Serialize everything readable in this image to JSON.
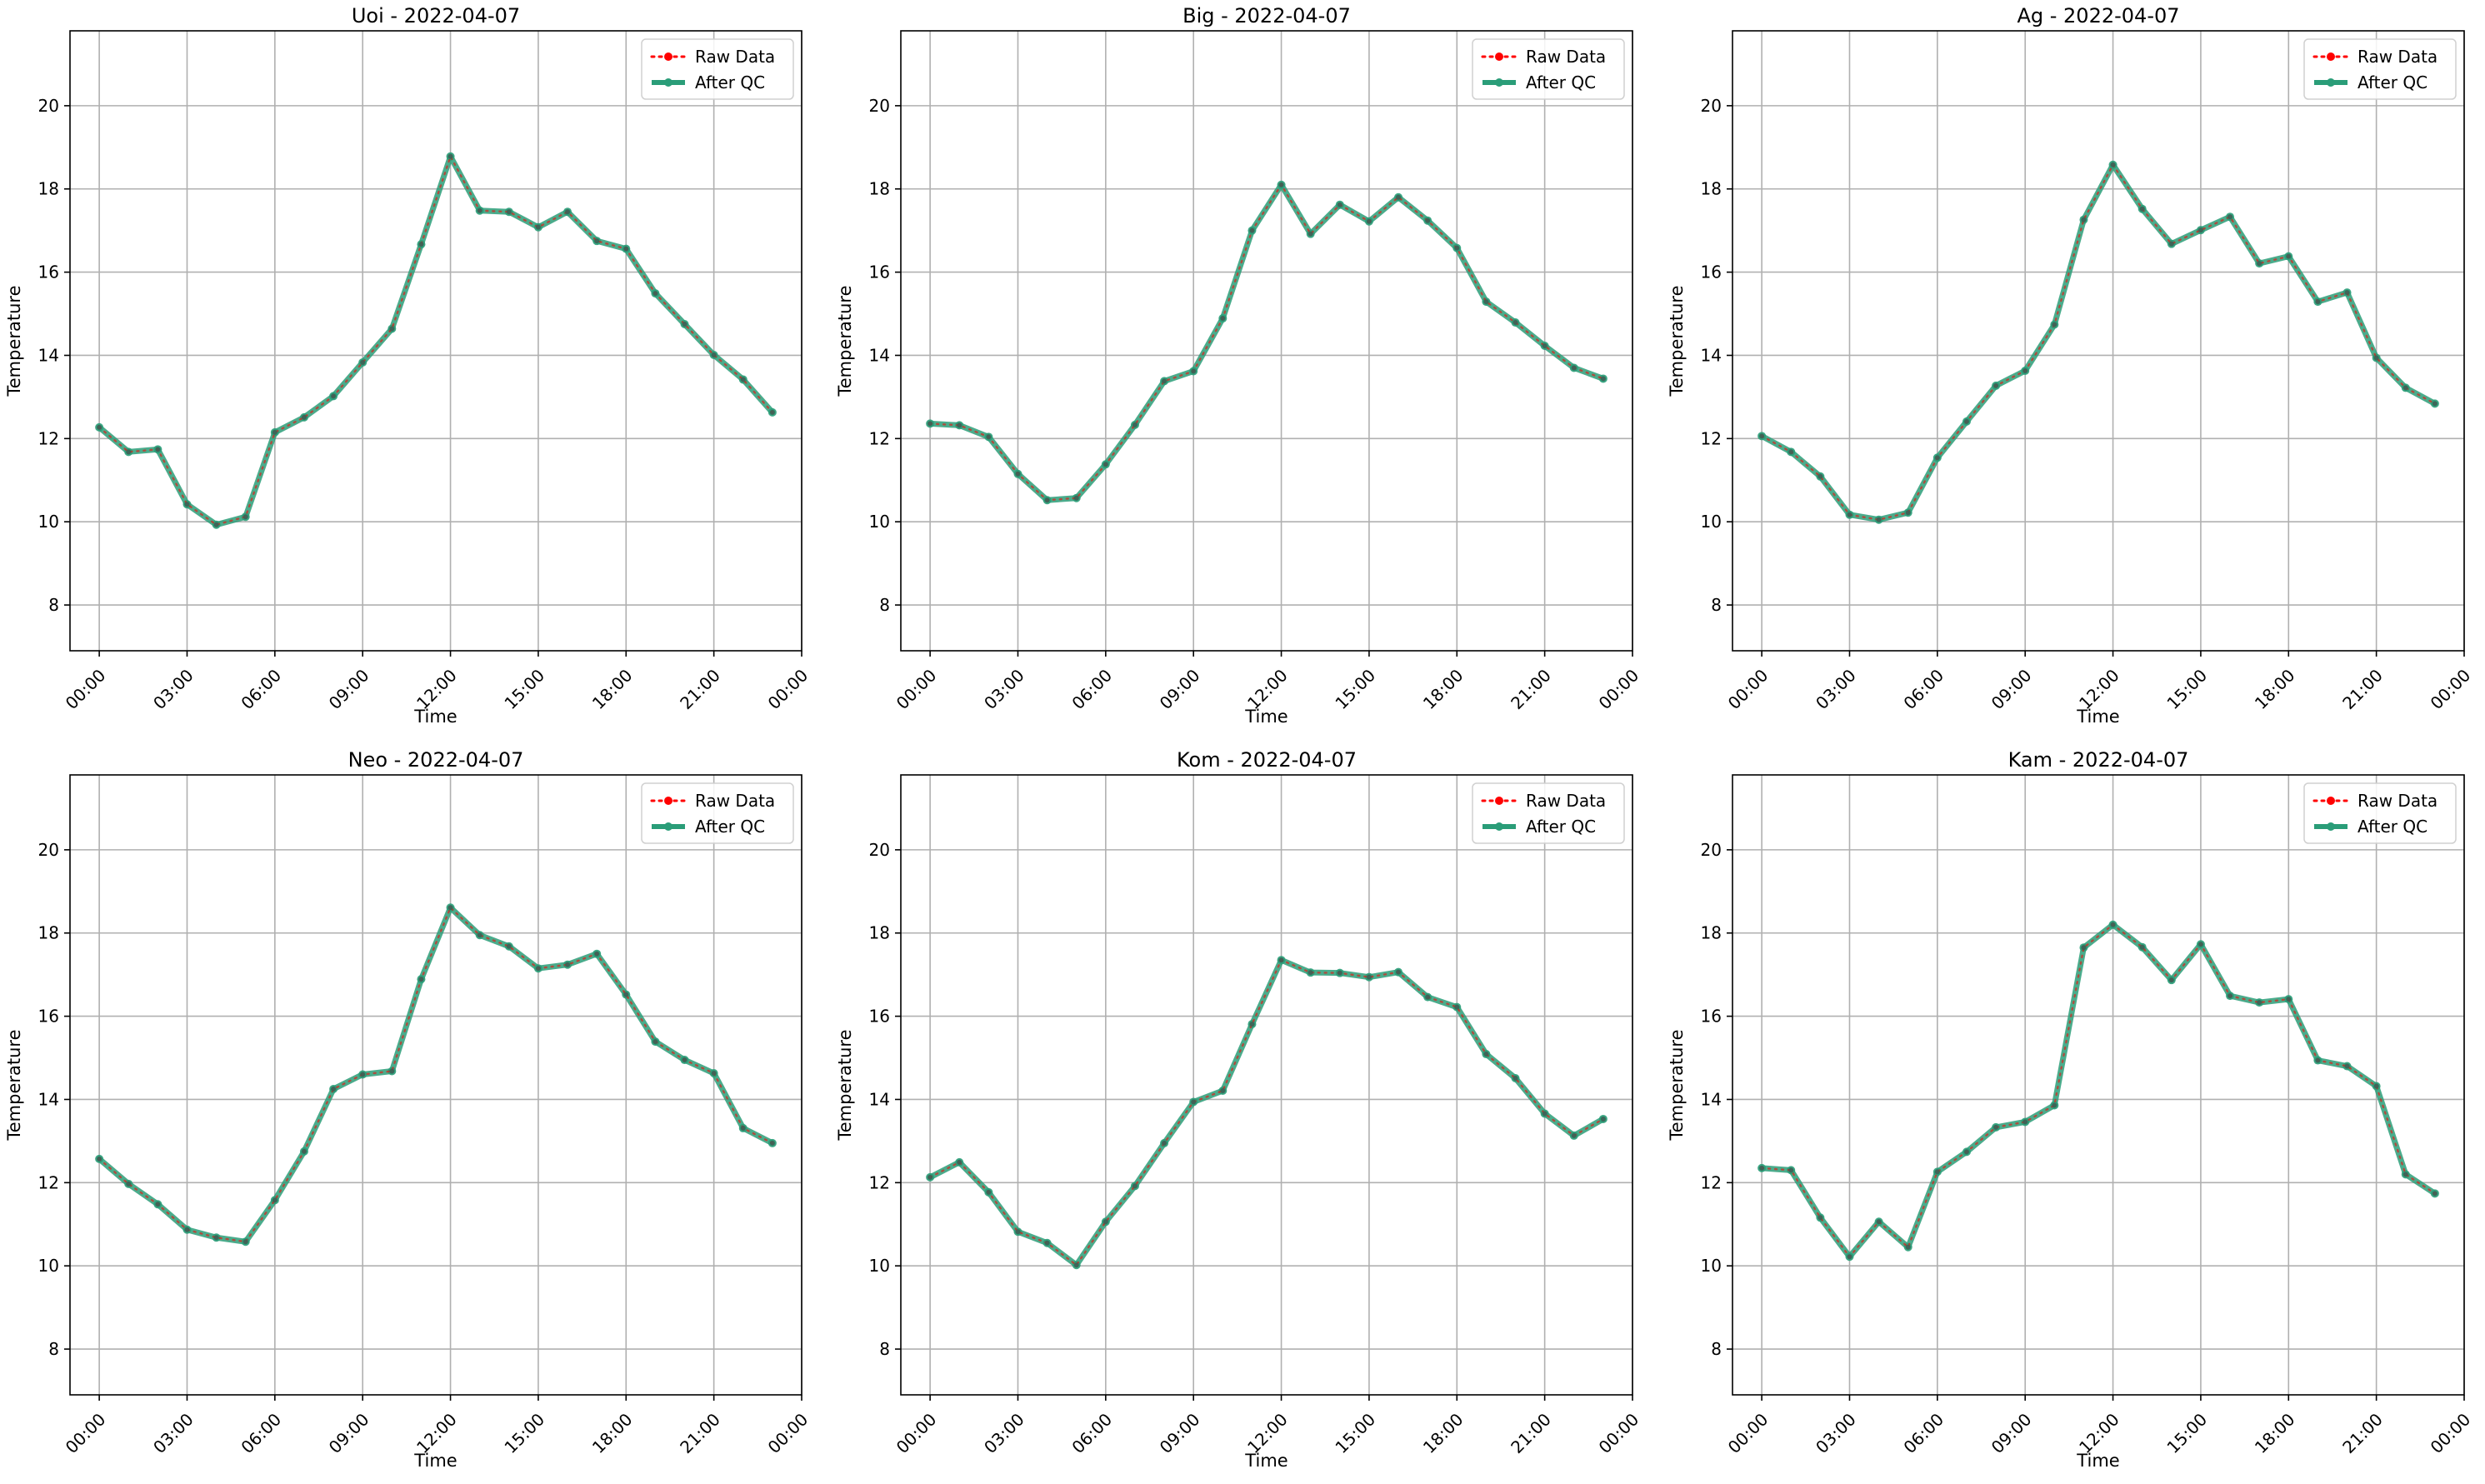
{
  "figure": {
    "background": "#ffffff"
  },
  "legend": {
    "placement": "upper-right",
    "raw_label": "Raw Data",
    "qc_label": "After QC"
  },
  "colors": {
    "raw": "#ff0000",
    "qc": "#2a9d78",
    "grid": "#b0b0b0",
    "axis": "#000000"
  },
  "chart_data": [
    {
      "type": "line",
      "title": "Uoi - 2022-04-07",
      "xlabel": "Time",
      "ylabel": "Temperature",
      "xlim": [
        "2022-04-06 23:00",
        "2022-04-08 00:00"
      ],
      "ylim": [
        6.9,
        21.8
      ],
      "x_ticks": [
        "00:00",
        "03:00",
        "06:00",
        "09:00",
        "12:00",
        "15:00",
        "18:00",
        "21:00",
        "00:00"
      ],
      "y_ticks": [
        8,
        10,
        12,
        14,
        16,
        18,
        20
      ],
      "grid": true,
      "legend": "upper-right",
      "x": [
        "00:00",
        "01:00",
        "02:00",
        "03:00",
        "04:00",
        "05:00",
        "06:00",
        "07:00",
        "08:00",
        "09:00",
        "10:00",
        "11:00",
        "12:00",
        "13:00",
        "14:00",
        "15:00",
        "16:00",
        "17:00",
        "18:00",
        "19:00",
        "20:00",
        "21:00",
        "22:00",
        "23:00"
      ],
      "series": [
        {
          "name": "Raw Data",
          "values": [
            12.27,
            11.68,
            11.74,
            10.42,
            9.93,
            10.12,
            12.15,
            12.51,
            13.02,
            13.83,
            14.64,
            16.67,
            18.78,
            17.48,
            17.45,
            17.08,
            17.45,
            16.75,
            16.56,
            15.49,
            14.75,
            14.01,
            13.42,
            12.63
          ]
        },
        {
          "name": "After QC",
          "values": [
            12.27,
            11.68,
            11.74,
            10.42,
            9.93,
            10.12,
            12.15,
            12.51,
            13.02,
            13.83,
            14.64,
            16.67,
            18.78,
            17.48,
            17.45,
            17.08,
            17.45,
            16.75,
            16.56,
            15.49,
            14.75,
            14.01,
            13.42,
            12.63
          ]
        }
      ]
    },
    {
      "type": "line",
      "title": "Big - 2022-04-07",
      "xlabel": "Time",
      "ylabel": "Temperature",
      "xlim": [
        "2022-04-06 23:00",
        "2022-04-08 00:00"
      ],
      "ylim": [
        6.9,
        21.8
      ],
      "x_ticks": [
        "00:00",
        "03:00",
        "06:00",
        "09:00",
        "12:00",
        "15:00",
        "18:00",
        "21:00",
        "00:00"
      ],
      "y_ticks": [
        8,
        10,
        12,
        14,
        16,
        18,
        20
      ],
      "grid": true,
      "legend": "upper-right",
      "x": [
        "00:00",
        "01:00",
        "02:00",
        "03:00",
        "04:00",
        "05:00",
        "06:00",
        "07:00",
        "08:00",
        "09:00",
        "10:00",
        "11:00",
        "12:00",
        "13:00",
        "14:00",
        "15:00",
        "16:00",
        "17:00",
        "18:00",
        "19:00",
        "20:00",
        "21:00",
        "22:00",
        "23:00"
      ],
      "series": [
        {
          "name": "Raw Data",
          "values": [
            12.36,
            12.32,
            12.04,
            11.15,
            10.52,
            10.57,
            11.38,
            12.33,
            13.38,
            13.62,
            14.89,
            17.0,
            18.1,
            16.92,
            17.62,
            17.22,
            17.8,
            17.24,
            16.58,
            15.29,
            14.79,
            14.23,
            13.7,
            13.44
          ]
        },
        {
          "name": "After QC",
          "values": [
            12.36,
            12.32,
            12.04,
            11.15,
            10.52,
            10.57,
            11.38,
            12.33,
            13.38,
            13.62,
            14.89,
            17.0,
            18.1,
            16.92,
            17.62,
            17.22,
            17.8,
            17.24,
            16.58,
            15.29,
            14.79,
            14.23,
            13.7,
            13.44
          ]
        }
      ]
    },
    {
      "type": "line",
      "title": "Ag - 2022-04-07",
      "xlabel": "Time",
      "ylabel": "Temperature",
      "xlim": [
        "2022-04-06 23:00",
        "2022-04-08 00:00"
      ],
      "ylim": [
        6.9,
        21.8
      ],
      "x_ticks": [
        "00:00",
        "03:00",
        "06:00",
        "09:00",
        "12:00",
        "15:00",
        "18:00",
        "21:00",
        "00:00"
      ],
      "y_ticks": [
        8,
        10,
        12,
        14,
        16,
        18,
        20
      ],
      "grid": true,
      "legend": "upper-right",
      "x": [
        "00:00",
        "01:00",
        "02:00",
        "03:00",
        "04:00",
        "05:00",
        "06:00",
        "07:00",
        "08:00",
        "09:00",
        "10:00",
        "11:00",
        "12:00",
        "13:00",
        "14:00",
        "15:00",
        "16:00",
        "17:00",
        "18:00",
        "19:00",
        "20:00",
        "21:00",
        "22:00",
        "23:00"
      ],
      "series": [
        {
          "name": "Raw Data",
          "values": [
            12.06,
            11.68,
            11.09,
            10.17,
            10.05,
            10.22,
            11.54,
            12.41,
            13.27,
            13.63,
            14.74,
            17.26,
            18.58,
            17.52,
            16.68,
            17.01,
            17.33,
            16.21,
            16.38,
            15.29,
            15.51,
            13.94,
            13.22,
            12.84
          ]
        },
        {
          "name": "After QC",
          "values": [
            12.06,
            11.68,
            11.09,
            10.17,
            10.05,
            10.22,
            11.54,
            12.41,
            13.27,
            13.63,
            14.74,
            17.26,
            18.58,
            17.52,
            16.68,
            17.01,
            17.33,
            16.21,
            16.38,
            15.29,
            15.51,
            13.94,
            13.22,
            12.84
          ]
        }
      ]
    },
    {
      "type": "line",
      "title": "Neo - 2022-04-07",
      "xlabel": "Time",
      "ylabel": "Temperature",
      "xlim": [
        "2022-04-06 23:00",
        "2022-04-08 00:00"
      ],
      "ylim": [
        6.9,
        21.8
      ],
      "x_ticks": [
        "00:00",
        "03:00",
        "06:00",
        "09:00",
        "12:00",
        "15:00",
        "18:00",
        "21:00",
        "00:00"
      ],
      "y_ticks": [
        8,
        10,
        12,
        14,
        16,
        18,
        20
      ],
      "grid": true,
      "legend": "upper-right",
      "x": [
        "00:00",
        "01:00",
        "02:00",
        "03:00",
        "04:00",
        "05:00",
        "06:00",
        "07:00",
        "08:00",
        "09:00",
        "10:00",
        "11:00",
        "12:00",
        "13:00",
        "14:00",
        "15:00",
        "16:00",
        "17:00",
        "18:00",
        "19:00",
        "20:00",
        "21:00",
        "22:00",
        "23:00"
      ],
      "series": [
        {
          "name": "Raw Data",
          "values": [
            12.57,
            11.97,
            11.48,
            10.87,
            10.68,
            10.58,
            11.58,
            12.75,
            14.25,
            14.6,
            14.68,
            16.89,
            18.61,
            17.95,
            17.68,
            17.15,
            17.24,
            17.5,
            16.52,
            15.39,
            14.95,
            14.63,
            13.31,
            12.95
          ]
        },
        {
          "name": "After QC",
          "values": [
            12.57,
            11.97,
            11.48,
            10.87,
            10.68,
            10.58,
            11.58,
            12.75,
            14.25,
            14.6,
            14.68,
            16.89,
            18.61,
            17.95,
            17.68,
            17.15,
            17.24,
            17.5,
            16.52,
            15.39,
            14.95,
            14.63,
            13.31,
            12.95
          ]
        }
      ]
    },
    {
      "type": "line",
      "title": "Kom - 2022-04-07",
      "xlabel": "Time",
      "ylabel": "Temperature",
      "xlim": [
        "2022-04-06 23:00",
        "2022-04-08 00:00"
      ],
      "ylim": [
        6.9,
        21.8
      ],
      "x_ticks": [
        "00:00",
        "03:00",
        "06:00",
        "09:00",
        "12:00",
        "15:00",
        "18:00",
        "21:00",
        "00:00"
      ],
      "y_ticks": [
        8,
        10,
        12,
        14,
        16,
        18,
        20
      ],
      "grid": true,
      "legend": "upper-right",
      "x": [
        "00:00",
        "01:00",
        "02:00",
        "03:00",
        "04:00",
        "05:00",
        "06:00",
        "07:00",
        "08:00",
        "09:00",
        "10:00",
        "11:00",
        "12:00",
        "13:00",
        "14:00",
        "15:00",
        "16:00",
        "17:00",
        "18:00",
        "19:00",
        "20:00",
        "21:00",
        "22:00",
        "23:00"
      ],
      "series": [
        {
          "name": "Raw Data",
          "values": [
            12.13,
            12.49,
            11.77,
            10.82,
            10.55,
            10.02,
            11.06,
            11.92,
            12.95,
            13.94,
            14.21,
            15.81,
            17.35,
            17.05,
            17.04,
            16.94,
            17.06,
            16.46,
            16.22,
            15.09,
            14.51,
            13.66,
            13.13,
            13.53
          ]
        },
        {
          "name": "After QC",
          "values": [
            12.13,
            12.49,
            11.77,
            10.82,
            10.55,
            10.02,
            11.06,
            11.92,
            12.95,
            13.94,
            14.21,
            15.81,
            17.35,
            17.05,
            17.04,
            16.94,
            17.06,
            16.46,
            16.22,
            15.09,
            14.51,
            13.66,
            13.13,
            13.53
          ]
        }
      ]
    },
    {
      "type": "line",
      "title": "Kam - 2022-04-07",
      "xlabel": "Time",
      "ylabel": "Temperature",
      "xlim": [
        "2022-04-06 23:00",
        "2022-04-08 00:00"
      ],
      "ylim": [
        6.9,
        21.8
      ],
      "x_ticks": [
        "00:00",
        "03:00",
        "06:00",
        "09:00",
        "12:00",
        "15:00",
        "18:00",
        "21:00",
        "00:00"
      ],
      "y_ticks": [
        8,
        10,
        12,
        14,
        16,
        18,
        20
      ],
      "grid": true,
      "legend": "upper-right",
      "x": [
        "00:00",
        "01:00",
        "02:00",
        "03:00",
        "04:00",
        "05:00",
        "06:00",
        "07:00",
        "08:00",
        "09:00",
        "10:00",
        "11:00",
        "12:00",
        "13:00",
        "14:00",
        "15:00",
        "16:00",
        "17:00",
        "18:00",
        "19:00",
        "20:00",
        "21:00",
        "22:00",
        "23:00"
      ],
      "series": [
        {
          "name": "Raw Data",
          "values": [
            12.35,
            12.3,
            11.16,
            10.22,
            11.06,
            10.45,
            12.26,
            12.74,
            13.33,
            13.46,
            13.86,
            17.65,
            18.2,
            17.66,
            16.87,
            17.73,
            16.49,
            16.33,
            16.41,
            14.94,
            14.8,
            14.32,
            12.2,
            11.74
          ]
        },
        {
          "name": "After QC",
          "values": [
            12.35,
            12.3,
            11.16,
            10.22,
            11.06,
            10.45,
            12.26,
            12.74,
            13.33,
            13.46,
            13.86,
            17.65,
            18.2,
            17.66,
            16.87,
            17.73,
            16.49,
            16.33,
            16.41,
            14.94,
            14.8,
            14.32,
            12.2,
            11.74
          ]
        }
      ]
    }
  ]
}
